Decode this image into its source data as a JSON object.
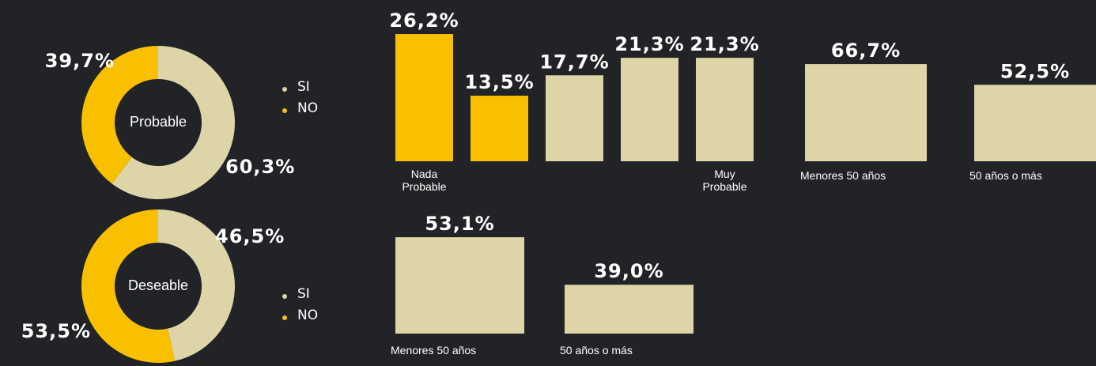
{
  "chart_data": [
    {
      "type": "donut",
      "center_label": "Probable",
      "categories": [
        "SI",
        "NO"
      ],
      "values": [
        60.3,
        39.7
      ],
      "value_labels": [
        "60,3%",
        "39,7%"
      ],
      "colors": [
        "#ddd5a8",
        "#f9c000"
      ],
      "legend": true
    },
    {
      "type": "donut",
      "center_label": "Deseable",
      "categories": [
        "SI",
        "NO"
      ],
      "values": [
        46.5,
        53.5
      ],
      "value_labels": [
        "46,5%",
        "53,5%"
      ],
      "colors": [
        "#ddd5a8",
        "#f9c000"
      ],
      "legend": true
    },
    {
      "type": "bar",
      "categories": [
        "Nada Probable",
        null,
        null,
        null,
        "Muy Probable"
      ],
      "values": [
        26.2,
        13.5,
        17.7,
        21.3,
        21.3
      ],
      "value_labels": [
        "26,2%",
        "13,5%",
        "17,7%",
        "21,3%",
        "21,3%"
      ],
      "colors": [
        "#f9c000",
        "#f9c000",
        "#ddd5a8",
        "#ddd5a8",
        "#ddd5a8"
      ],
      "ylim": [
        0,
        28
      ]
    },
    {
      "type": "bar",
      "categories": [
        "Menores 50 años",
        "50 años o más"
      ],
      "values": [
        66.7,
        52.5
      ],
      "value_labels": [
        "66,7%",
        "52,5%"
      ],
      "colors": [
        "#ddd5a8",
        "#ddd5a8"
      ],
      "ylim": [
        0,
        70
      ]
    },
    {
      "type": "bar",
      "categories": [
        "Menores 50 años",
        "50 años o más"
      ],
      "values": [
        53.1,
        39.0
      ],
      "value_labels": [
        "53,1%",
        "39,0%"
      ],
      "colors": [
        "#ddd5a8",
        "#ddd5a8"
      ],
      "ylim": [
        24.5,
        55
      ]
    }
  ]
}
